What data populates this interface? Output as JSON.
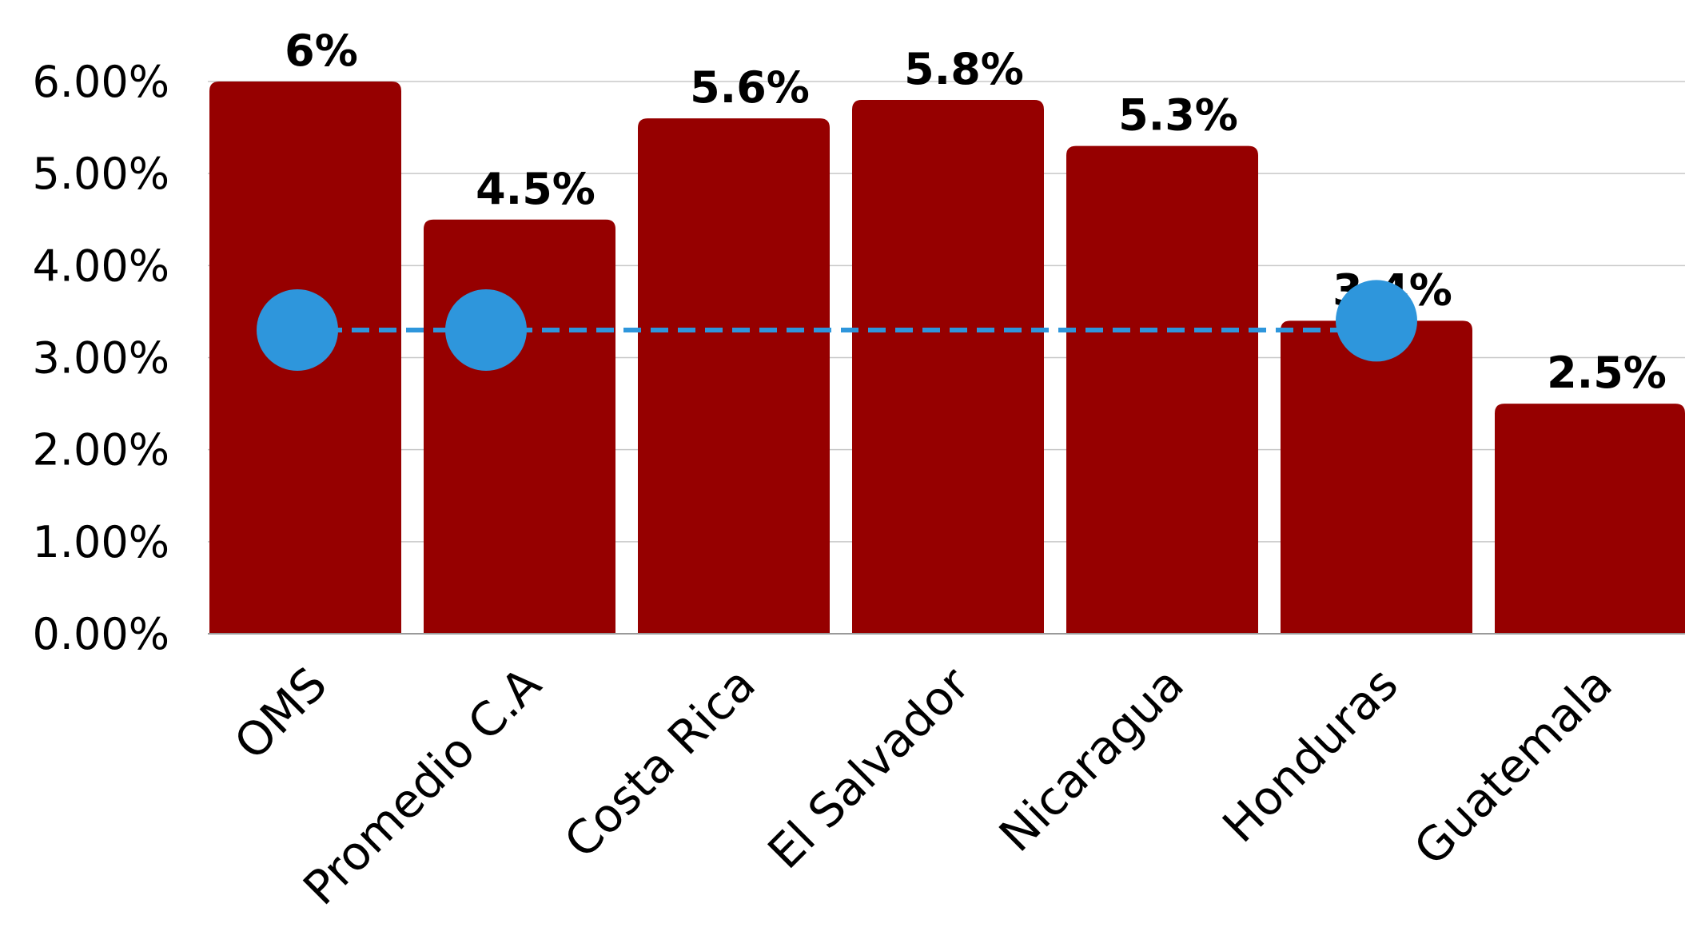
{
  "chart_data": {
    "type": "bar",
    "categories": [
      "OMS",
      "Promedio C.A",
      "Costa Rica",
      "El Salvador",
      "Nicaragua",
      "Honduras",
      "Guatemala"
    ],
    "values": [
      6.0,
      4.5,
      5.6,
      5.8,
      5.3,
      3.4,
      2.5
    ],
    "data_labels": [
      "6%",
      "4.5%",
      "5.6%",
      "5.8%",
      "5.3%",
      "3.4%",
      "2.5%"
    ],
    "yticks": [
      0,
      1,
      2,
      3,
      4,
      5,
      6
    ],
    "ytick_labels": [
      "0.00%",
      "1.00%",
      "2.00%",
      "3.00%",
      "4.00%",
      "5.00%",
      "6.00%"
    ],
    "ylim": [
      0,
      6.0
    ],
    "grid": true,
    "bar_color": "#960000",
    "overlay": {
      "type": "line",
      "style": "dashed",
      "color": "#2E96DC",
      "points": [
        {
          "category": "OMS",
          "value": 3.3
        },
        {
          "category": "Promedio C.A",
          "value": 3.3
        },
        {
          "category": "Honduras",
          "value": 3.4
        }
      ]
    }
  }
}
